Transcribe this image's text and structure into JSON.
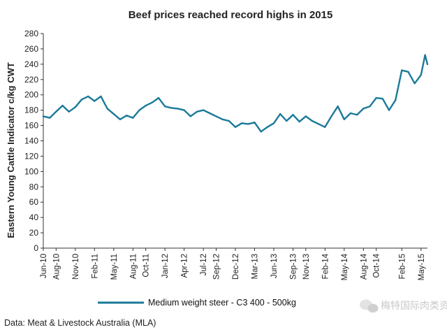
{
  "chart_data": {
    "type": "line",
    "title": "Beef prices reached record highs in 2015",
    "ylabel": "Eastern Young Cattle Indicator c/kg CWT",
    "xlabel": "",
    "ylim": [
      0,
      280
    ],
    "yticks": [
      0,
      20,
      40,
      60,
      80,
      100,
      120,
      140,
      160,
      180,
      200,
      220,
      240,
      260,
      280
    ],
    "xlim": [
      "2010-06",
      "2015-06"
    ],
    "xtick_labels": [
      "Jun-10",
      "Aug-10",
      "Nov-10",
      "Feb-11",
      "May-11",
      "Aug-11",
      "Oct-11",
      "Jan-12",
      "Apr-12",
      "Jul-12",
      "Sep-12",
      "Dec-12",
      "Mar-13",
      "Jun-13",
      "Sep-13",
      "Nov-13",
      "Feb-14",
      "May-14",
      "Aug-14",
      "Oct-14",
      "Feb-15",
      "May-15"
    ],
    "xtick_months": [
      "2010-06",
      "2010-08",
      "2010-11",
      "2011-02",
      "2011-05",
      "2011-08",
      "2011-10",
      "2012-01",
      "2012-04",
      "2012-07",
      "2012-09",
      "2012-12",
      "2013-03",
      "2013-06",
      "2013-09",
      "2013-11",
      "2014-02",
      "2014-05",
      "2014-08",
      "2014-10",
      "2015-02",
      "2015-05"
    ],
    "grid": false,
    "legend_position": "bottom",
    "series": [
      {
        "name": "Medium weight steer - C3 400 - 500kg",
        "color": "#1b7a99",
        "points": [
          [
            "2010-06",
            172
          ],
          [
            "2010-07",
            170
          ],
          [
            "2010-08",
            178
          ],
          [
            "2010-09",
            186
          ],
          [
            "2010-10",
            178
          ],
          [
            "2010-11",
            184
          ],
          [
            "2010-12",
            194
          ],
          [
            "2011-01",
            198
          ],
          [
            "2011-02",
            192
          ],
          [
            "2011-03",
            198
          ],
          [
            "2011-04",
            182
          ],
          [
            "2011-05",
            175
          ],
          [
            "2011-06",
            168
          ],
          [
            "2011-07",
            173
          ],
          [
            "2011-08",
            170
          ],
          [
            "2011-09",
            180
          ],
          [
            "2011-10",
            186
          ],
          [
            "2011-11",
            190
          ],
          [
            "2011-12",
            196
          ],
          [
            "2012-01",
            185
          ],
          [
            "2012-02",
            183
          ],
          [
            "2012-03",
            182
          ],
          [
            "2012-04",
            180
          ],
          [
            "2012-05",
            172
          ],
          [
            "2012-06",
            178
          ],
          [
            "2012-07",
            180
          ],
          [
            "2012-08",
            176
          ],
          [
            "2012-09",
            172
          ],
          [
            "2012-10",
            168
          ],
          [
            "2012-11",
            166
          ],
          [
            "2012-12",
            158
          ],
          [
            "2013-01",
            163
          ],
          [
            "2013-02",
            162
          ],
          [
            "2013-03",
            164
          ],
          [
            "2013-04",
            152
          ],
          [
            "2013-05",
            158
          ],
          [
            "2013-06",
            163
          ],
          [
            "2013-07",
            175
          ],
          [
            "2013-08",
            166
          ],
          [
            "2013-09",
            174
          ],
          [
            "2013-10",
            165
          ],
          [
            "2013-11",
            172
          ],
          [
            "2013-12",
            166
          ],
          [
            "2014-01",
            162
          ],
          [
            "2014-02",
            158
          ],
          [
            "2014-03",
            172
          ],
          [
            "2014-04",
            185
          ],
          [
            "2014-05",
            168
          ],
          [
            "2014-06",
            176
          ],
          [
            "2014-07",
            174
          ],
          [
            "2014-08",
            182
          ],
          [
            "2014-09",
            185
          ],
          [
            "2014-10",
            196
          ],
          [
            "2014-11",
            195
          ],
          [
            "2014-12",
            180
          ],
          [
            "2015-01",
            193
          ],
          [
            "2015-02",
            232
          ],
          [
            "2015-03",
            230
          ],
          [
            "2015-04",
            215
          ],
          [
            "2015-05",
            226
          ],
          [
            "2015-05-20",
            252
          ],
          [
            "2015-06",
            240
          ]
        ]
      }
    ]
  },
  "source": "Data: Meat & Livestock Australia (MLA)",
  "watermark": "梅特国际肉类资讯",
  "watermark_icon": "chat-bubble-icon"
}
